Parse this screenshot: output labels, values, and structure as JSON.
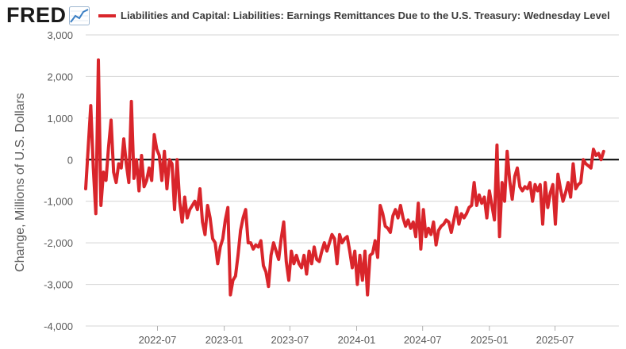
{
  "logo": {
    "text": "FRED",
    "icon": "fred-chart-icon"
  },
  "colors": {
    "series": "#d9252b",
    "zero_line": "#000000",
    "grid": "#d4d4d4",
    "panel": "#ffffff",
    "axis_text": "#595959"
  },
  "chart_data": {
    "type": "line",
    "title": "",
    "ylabel": "Change, Millions of U.S. Dollars",
    "xlabel": "",
    "ylim": [
      -4000,
      3000
    ],
    "yticks": [
      3000,
      2000,
      1000,
      0,
      -1000,
      -2000,
      -3000,
      -4000
    ],
    "ytick_labels": [
      "3,000",
      "2,000",
      "1,000",
      "0",
      "-1,000",
      "-2,000",
      "-3,000",
      "-4,000"
    ],
    "xlim": [
      "2021-12-15",
      "2025-12-24"
    ],
    "xticks": [
      "2022-07-01",
      "2023-01-01",
      "2023-07-01",
      "2024-01-01",
      "2024-07-01",
      "2025-01-01",
      "2025-07-01"
    ],
    "xtick_labels": [
      "2022-07",
      "2023-01",
      "2023-07",
      "2024-01",
      "2024-07",
      "2025-01",
      "2025-07"
    ],
    "grid": true,
    "reference_line": 0,
    "legend": "top",
    "series": [
      {
        "name": "Liabilities and Capital: Liabilities: Earnings Remittances Due to the U.S. Treasury: Wednesday Level",
        "color": "#d9252b",
        "points": [
          [
            "2021-12-15",
            -700
          ],
          [
            "2021-12-22",
            300
          ],
          [
            "2021-12-29",
            1300
          ],
          [
            "2022-01-05",
            -200
          ],
          [
            "2022-01-12",
            -1300
          ],
          [
            "2022-01-19",
            2400
          ],
          [
            "2022-01-26",
            -1100
          ],
          [
            "2022-02-02",
            -300
          ],
          [
            "2022-02-09",
            -500
          ],
          [
            "2022-02-16",
            300
          ],
          [
            "2022-02-23",
            950
          ],
          [
            "2022-03-02",
            -300
          ],
          [
            "2022-03-09",
            -550
          ],
          [
            "2022-03-16",
            -100
          ],
          [
            "2022-03-23",
            -200
          ],
          [
            "2022-03-30",
            500
          ],
          [
            "2022-04-06",
            -100
          ],
          [
            "2022-04-13",
            -550
          ],
          [
            "2022-04-20",
            1400
          ],
          [
            "2022-04-27",
            -450
          ],
          [
            "2022-05-04",
            0
          ],
          [
            "2022-05-11",
            -750
          ],
          [
            "2022-05-18",
            100
          ],
          [
            "2022-05-25",
            -650
          ],
          [
            "2022-06-01",
            -500
          ],
          [
            "2022-06-08",
            -200
          ],
          [
            "2022-06-15",
            -500
          ],
          [
            "2022-06-22",
            600
          ],
          [
            "2022-06-29",
            250
          ],
          [
            "2022-07-06",
            100
          ],
          [
            "2022-07-13",
            -500
          ],
          [
            "2022-07-20",
            200
          ],
          [
            "2022-07-27",
            -700
          ],
          [
            "2022-08-03",
            0
          ],
          [
            "2022-08-10",
            -100
          ],
          [
            "2022-08-17",
            -1200
          ],
          [
            "2022-08-24",
            0
          ],
          [
            "2022-08-31",
            -1000
          ],
          [
            "2022-09-07",
            -1500
          ],
          [
            "2022-09-14",
            -900
          ],
          [
            "2022-09-21",
            -1400
          ],
          [
            "2022-09-28",
            -1200
          ],
          [
            "2022-10-05",
            -1100
          ],
          [
            "2022-10-12",
            -1000
          ],
          [
            "2022-10-19",
            -1200
          ],
          [
            "2022-10-26",
            -700
          ],
          [
            "2022-11-02",
            -1500
          ],
          [
            "2022-11-09",
            -1800
          ],
          [
            "2022-11-16",
            -1100
          ],
          [
            "2022-11-23",
            -1400
          ],
          [
            "2022-11-30",
            -1900
          ],
          [
            "2022-12-07",
            -2000
          ],
          [
            "2022-12-14",
            -2500
          ],
          [
            "2022-12-21",
            -2100
          ],
          [
            "2022-12-28",
            -1900
          ],
          [
            "2023-01-04",
            -1450
          ],
          [
            "2023-01-11",
            -1150
          ],
          [
            "2023-01-18",
            -3250
          ],
          [
            "2023-01-25",
            -2900
          ],
          [
            "2023-02-01",
            -2800
          ],
          [
            "2023-02-08",
            -2300
          ],
          [
            "2023-02-15",
            -1700
          ],
          [
            "2023-02-22",
            -1400
          ],
          [
            "2023-03-01",
            -1200
          ],
          [
            "2023-03-08",
            -2000
          ],
          [
            "2023-03-15",
            -2000
          ],
          [
            "2023-03-22",
            -2150
          ],
          [
            "2023-03-29",
            -2050
          ],
          [
            "2023-04-05",
            -2100
          ],
          [
            "2023-04-12",
            -1950
          ],
          [
            "2023-04-19",
            -2550
          ],
          [
            "2023-04-26",
            -2700
          ],
          [
            "2023-05-03",
            -3050
          ],
          [
            "2023-05-10",
            -2300
          ],
          [
            "2023-05-17",
            -2000
          ],
          [
            "2023-05-24",
            -2200
          ],
          [
            "2023-05-31",
            -2400
          ],
          [
            "2023-06-07",
            -1900
          ],
          [
            "2023-06-14",
            -1500
          ],
          [
            "2023-06-21",
            -2450
          ],
          [
            "2023-06-28",
            -2900
          ],
          [
            "2023-07-05",
            -2200
          ],
          [
            "2023-07-12",
            -2500
          ],
          [
            "2023-07-19",
            -2300
          ],
          [
            "2023-07-26",
            -2500
          ],
          [
            "2023-08-02",
            -2600
          ],
          [
            "2023-08-09",
            -2300
          ],
          [
            "2023-08-16",
            -2750
          ],
          [
            "2023-08-23",
            -2200
          ],
          [
            "2023-08-30",
            -2500
          ],
          [
            "2023-09-06",
            -2100
          ],
          [
            "2023-09-13",
            -2400
          ],
          [
            "2023-09-20",
            -2450
          ],
          [
            "2023-09-27",
            -2200
          ],
          [
            "2023-10-04",
            -2000
          ],
          [
            "2023-10-11",
            -2200
          ],
          [
            "2023-10-18",
            -2000
          ],
          [
            "2023-10-25",
            -1800
          ],
          [
            "2023-11-01",
            -1900
          ],
          [
            "2023-11-08",
            -2500
          ],
          [
            "2023-11-15",
            -1800
          ],
          [
            "2023-11-22",
            -2000
          ],
          [
            "2023-11-29",
            -1900
          ],
          [
            "2023-12-06",
            -1850
          ],
          [
            "2023-12-13",
            -2200
          ],
          [
            "2023-12-20",
            -2600
          ],
          [
            "2023-12-27",
            -2200
          ],
          [
            "2024-01-03",
            -3000
          ],
          [
            "2024-01-10",
            -2300
          ],
          [
            "2024-01-17",
            -2900
          ],
          [
            "2024-01-24",
            -2200
          ],
          [
            "2024-01-31",
            -3250
          ],
          [
            "2024-02-07",
            -2300
          ],
          [
            "2024-02-14",
            -2250
          ],
          [
            "2024-02-21",
            -1950
          ],
          [
            "2024-02-28",
            -2350
          ],
          [
            "2024-03-06",
            -1100
          ],
          [
            "2024-03-13",
            -1300
          ],
          [
            "2024-03-20",
            -1600
          ],
          [
            "2024-03-27",
            -1650
          ],
          [
            "2024-04-03",
            -1750
          ],
          [
            "2024-04-10",
            -1350
          ],
          [
            "2024-04-17",
            -1200
          ],
          [
            "2024-04-24",
            -1400
          ],
          [
            "2024-05-01",
            -1100
          ],
          [
            "2024-05-08",
            -1400
          ],
          [
            "2024-05-15",
            -1600
          ],
          [
            "2024-05-22",
            -1450
          ],
          [
            "2024-05-29",
            -1650
          ],
          [
            "2024-06-05",
            -1500
          ],
          [
            "2024-06-12",
            -1850
          ],
          [
            "2024-06-19",
            -1050
          ],
          [
            "2024-06-26",
            -2150
          ],
          [
            "2024-07-03",
            -1200
          ],
          [
            "2024-07-10",
            -1850
          ],
          [
            "2024-07-17",
            -1650
          ],
          [
            "2024-07-24",
            -1800
          ],
          [
            "2024-07-31",
            -1500
          ],
          [
            "2024-08-07",
            -2050
          ],
          [
            "2024-08-14",
            -1700
          ],
          [
            "2024-08-21",
            -1600
          ],
          [
            "2024-08-28",
            -1550
          ],
          [
            "2024-09-04",
            -1450
          ],
          [
            "2024-09-11",
            -1500
          ],
          [
            "2024-09-18",
            -1750
          ],
          [
            "2024-09-25",
            -1450
          ],
          [
            "2024-10-02",
            -1150
          ],
          [
            "2024-10-09",
            -1550
          ],
          [
            "2024-10-16",
            -1300
          ],
          [
            "2024-10-23",
            -1400
          ],
          [
            "2024-10-30",
            -1300
          ],
          [
            "2024-11-06",
            -1150
          ],
          [
            "2024-11-13",
            -1100
          ],
          [
            "2024-11-20",
            -550
          ],
          [
            "2024-11-27",
            -1100
          ],
          [
            "2024-12-04",
            -850
          ],
          [
            "2024-12-11",
            -1050
          ],
          [
            "2024-12-18",
            -900
          ],
          [
            "2024-12-25",
            -1400
          ],
          [
            "2025-01-01",
            -750
          ],
          [
            "2025-01-08",
            -1100
          ],
          [
            "2025-01-15",
            -1450
          ],
          [
            "2025-01-22",
            350
          ],
          [
            "2025-01-29",
            -1850
          ],
          [
            "2025-02-05",
            -550
          ],
          [
            "2025-02-12",
            -1000
          ],
          [
            "2025-02-19",
            200
          ],
          [
            "2025-02-26",
            -500
          ],
          [
            "2025-03-05",
            -950
          ],
          [
            "2025-03-12",
            -400
          ],
          [
            "2025-03-19",
            -200
          ],
          [
            "2025-03-26",
            -650
          ],
          [
            "2025-04-02",
            -750
          ],
          [
            "2025-04-09",
            -650
          ],
          [
            "2025-04-16",
            -700
          ],
          [
            "2025-04-23",
            -550
          ],
          [
            "2025-04-30",
            -1000
          ],
          [
            "2025-05-07",
            -600
          ],
          [
            "2025-05-14",
            -750
          ],
          [
            "2025-05-21",
            -600
          ],
          [
            "2025-05-28",
            -1550
          ],
          [
            "2025-06-04",
            -550
          ],
          [
            "2025-06-11",
            -1150
          ],
          [
            "2025-06-18",
            -800
          ],
          [
            "2025-06-25",
            -600
          ],
          [
            "2025-07-02",
            -1550
          ],
          [
            "2025-07-09",
            -350
          ],
          [
            "2025-07-16",
            -700
          ],
          [
            "2025-07-23",
            -1000
          ],
          [
            "2025-07-30",
            -800
          ],
          [
            "2025-08-06",
            -550
          ],
          [
            "2025-08-13",
            -900
          ],
          [
            "2025-08-20",
            -100
          ],
          [
            "2025-08-27",
            -700
          ],
          [
            "2025-09-03",
            -600
          ],
          [
            "2025-09-10",
            -550
          ],
          [
            "2025-09-17",
            0
          ],
          [
            "2025-09-24",
            -100
          ],
          [
            "2025-10-01",
            -150
          ],
          [
            "2025-10-08",
            -200
          ],
          [
            "2025-10-15",
            250
          ],
          [
            "2025-10-22",
            100
          ],
          [
            "2025-10-29",
            150
          ],
          [
            "2025-11-05",
            0
          ],
          [
            "2025-11-12",
            200
          ]
        ]
      }
    ]
  }
}
